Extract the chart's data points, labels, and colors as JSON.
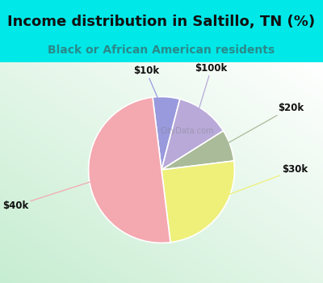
{
  "title": "Income distribution in Saltillo, TN (%)",
  "subtitle": "Black or African American residents",
  "slices": [
    {
      "label": "$10k",
      "value": 6,
      "color": "#9999dd"
    },
    {
      "label": "$100k",
      "value": 12,
      "color": "#b8a9d9"
    },
    {
      "label": "$20k",
      "value": 7,
      "color": "#aabb99"
    },
    {
      "label": "$30k",
      "value": 25,
      "color": "#eef07a"
    },
    {
      "label": "$40k",
      "value": 50,
      "color": "#f4a8b0"
    }
  ],
  "bg_color": "#00e8e8",
  "chart_bg_color": "#c8e8d0",
  "title_color": "#111111",
  "subtitle_color": "#2a8a8a",
  "label_color": "#111111",
  "startangle": 97,
  "watermark": "CityData.com",
  "title_fontsize": 13,
  "subtitle_fontsize": 10
}
